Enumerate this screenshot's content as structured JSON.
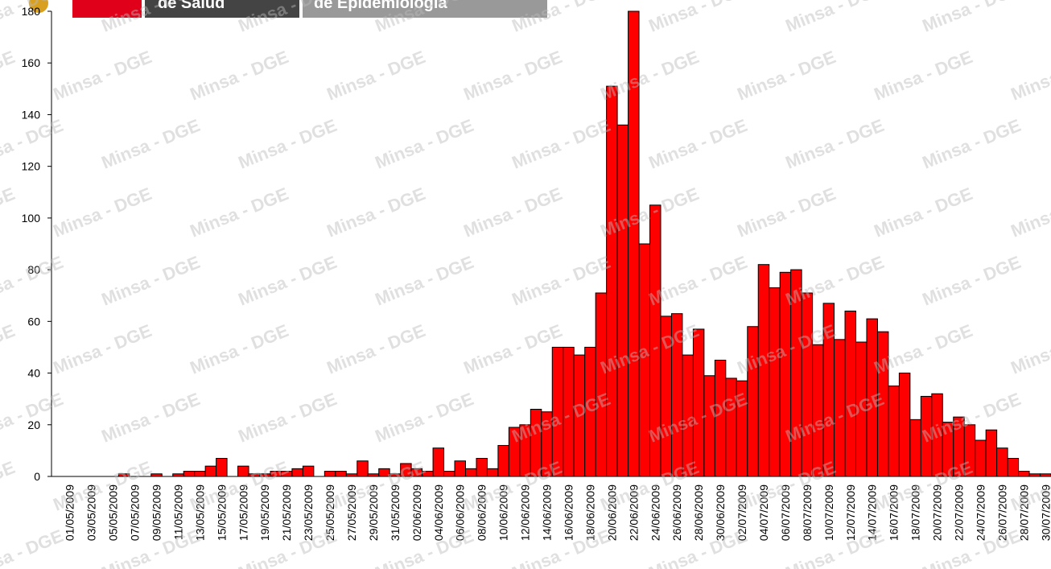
{
  "header": {
    "left": "de Salud",
    "right": "de Epidemiologia"
  },
  "watermark": "Minsa - DGE",
  "chart_data": {
    "type": "bar",
    "categories": [
      "01/05/2009",
      null,
      "03/05/2009",
      null,
      "05/05/2009",
      null,
      "07/05/2009",
      null,
      "09/05/2009",
      null,
      "11/05/2009",
      null,
      "13/05/2009",
      null,
      "15/05/2009",
      null,
      "17/05/2009",
      null,
      "19/05/2009",
      null,
      "21/05/2009",
      null,
      "23/05/2009",
      null,
      "25/05/2009",
      null,
      "27/05/2009",
      null,
      "29/05/2009",
      null,
      "31/05/2009",
      null,
      "02/06/2009",
      null,
      "04/06/2009",
      null,
      "06/06/2009",
      null,
      "08/06/2009",
      null,
      "10/06/2009",
      null,
      "12/06/2009",
      null,
      "14/06/2009",
      null,
      "16/06/2009",
      null,
      "18/06/2009",
      null,
      "20/06/2009",
      null,
      "22/06/2009",
      null,
      "24/06/2009",
      null,
      "26/06/2009",
      null,
      "28/06/2009",
      null,
      "30/06/2009",
      null,
      "02/07/2009",
      null,
      "04/07/2009",
      null,
      "06/07/2009",
      null,
      "08/07/2009",
      null,
      "10/07/2009",
      null,
      "12/07/2009",
      null,
      "14/07/2009",
      null,
      "16/07/2009",
      null,
      "18/07/2009",
      null,
      "20/07/2009",
      null,
      "22/07/2009",
      null,
      "24/07/2009",
      null,
      "26/07/2009",
      null,
      "28/07/2009",
      null,
      "30/07/2009"
    ],
    "values": [
      0,
      0,
      0,
      0,
      0,
      1,
      0,
      0,
      1,
      0,
      1,
      2,
      2,
      4,
      7,
      0,
      4,
      1,
      1,
      2,
      2,
      3,
      4,
      0,
      2,
      2,
      1,
      6,
      1,
      3,
      1,
      5,
      3,
      2,
      11,
      2,
      6,
      3,
      7,
      3,
      12,
      19,
      20,
      26,
      25,
      50,
      50,
      47,
      50,
      71,
      151,
      136,
      180,
      90,
      105,
      62,
      63,
      47,
      57,
      39,
      45,
      38,
      37,
      58,
      82,
      73,
      79,
      80,
      71,
      51,
      67,
      53,
      64,
      52,
      61,
      56,
      35,
      40,
      22,
      31,
      32,
      21,
      23,
      20,
      14,
      18,
      11,
      7,
      2,
      1,
      1
    ],
    "color": "#ff0000",
    "ylim": [
      0,
      180
    ],
    "yticks": [
      0,
      20,
      40,
      60,
      80,
      100,
      120,
      140,
      160,
      180
    ],
    "grid": false
  }
}
